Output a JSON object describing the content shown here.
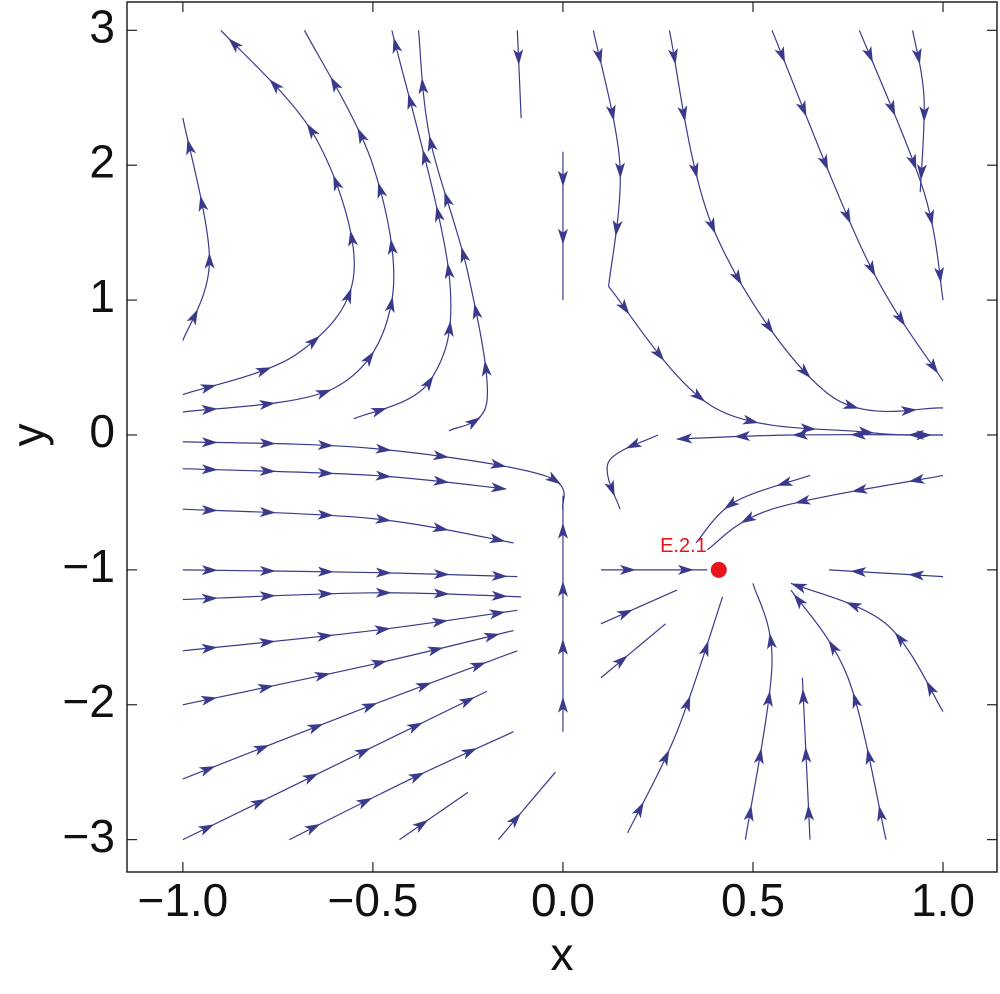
{
  "chart_data": {
    "type": "stream",
    "xlabel": "x",
    "ylabel": "y",
    "xlim": [
      -1.147,
      1.142
    ],
    "ylim": [
      -3.24,
      3.21
    ],
    "xticks": [
      {
        "value": -1,
        "label": "−1.0"
      },
      {
        "value": -0.5,
        "label": "−0.5"
      },
      {
        "value": 0,
        "label": "0.0"
      },
      0.5,
      {
        "value": 1,
        "label": "1.0"
      }
    ],
    "yticks": [
      {
        "value": -3,
        "label": "−3"
      },
      {
        "value": -2,
        "label": "−2"
      },
      {
        "value": -1,
        "label": "−1"
      },
      0,
      1,
      2,
      3
    ],
    "color": "#3a3a8c",
    "streamlines": [
      {
        "x": [
          -1,
          -0.5,
          -0.05,
          0
        ],
        "y": [
          -0.05,
          -0.1,
          -0.3,
          -0.55
        ]
      },
      {
        "x": [
          -1,
          -0.5,
          -0.15
        ],
        "y": [
          -0.25,
          -0.3,
          -0.4
        ]
      },
      {
        "x": [
          -1,
          -0.5,
          -0.13
        ],
        "y": [
          -0.55,
          -0.62,
          -0.8
        ]
      },
      {
        "x": [
          -1,
          -0.5,
          -0.12
        ],
        "y": [
          -1.0,
          -1.02,
          -1.05
        ]
      },
      {
        "x": [
          -1,
          -0.5,
          -0.11
        ],
        "y": [
          -1.22,
          -1.17,
          -1.2
        ]
      },
      {
        "x": [
          -1,
          -0.5,
          -0.12
        ],
        "y": [
          -1.6,
          -1.45,
          -1.3
        ]
      },
      {
        "x": [
          -1,
          -0.5,
          -0.13
        ],
        "y": [
          -2.0,
          -1.7,
          -1.45
        ]
      },
      {
        "x": [
          -1,
          -0.5,
          -0.12
        ],
        "y": [
          -2.55,
          -2.0,
          -1.6
        ]
      },
      {
        "x": [
          -1,
          -0.6,
          -0.2
        ],
        "y": [
          -3.0,
          -2.45,
          -1.9
        ]
      },
      {
        "x": [
          -0.72,
          -0.4,
          -0.13
        ],
        "y": [
          -3.0,
          -2.55,
          -2.2
        ]
      },
      {
        "x": [
          -0.43,
          -0.25
        ],
        "y": [
          -3.0,
          -2.65
        ]
      },
      {
        "x": [
          -0.17,
          -0.02
        ],
        "y": [
          -3.0,
          -2.5
        ]
      },
      {
        "x": [
          0,
          0,
          0
        ],
        "y": [
          -2.2,
          -1.2,
          -0.45
        ]
      },
      {
        "x": [
          -1,
          -0.7,
          -0.55,
          -0.65,
          -0.9
        ],
        "y": [
          0.3,
          0.6,
          1.2,
          2.2,
          3.0
        ]
      },
      {
        "x": [
          -1,
          -0.93,
          -1
        ],
        "y": [
          0.7,
          1.3,
          2.35
        ]
      },
      {
        "x": [
          -1,
          -0.6,
          -0.45,
          -0.5,
          -0.68
        ],
        "y": [
          0.17,
          0.35,
          1.0,
          2.0,
          3.0
        ]
      },
      {
        "x": [
          -0.55,
          -0.35,
          -0.3,
          -0.45
        ],
        "y": [
          0.12,
          0.4,
          1.2,
          3.0
        ]
      },
      {
        "x": [
          -0.3,
          -0.2,
          -0.25,
          -0.35,
          -0.38
        ],
        "y": [
          0.03,
          0.25,
          1.2,
          2.2,
          3.0
        ]
      },
      {
        "x": [
          -0.12,
          -0.11
        ],
        "y": [
          3.0,
          2.35
        ]
      },
      {
        "x": [
          0,
          0
        ],
        "y": [
          2.1,
          1.0
        ]
      },
      {
        "x": [
          0.08,
          0.15,
          0.12
        ],
        "y": [
          3.0,
          2.0,
          1.1
        ]
      },
      {
        "x": [
          0.28,
          0.4,
          0.7,
          1.0
        ],
        "y": [
          3.0,
          1.5,
          0.3,
          0.2
        ]
      },
      {
        "x": [
          0.12,
          0.4,
          0.8,
          1.0
        ],
        "y": [
          1.1,
          0.2,
          0.02,
          0.0
        ]
      },
      {
        "x": [
          0.55,
          0.8,
          1.0
        ],
        "y": [
          3.0,
          1.3,
          0.4
        ]
      },
      {
        "x": [
          0.78,
          0.95,
          1.0
        ],
        "y": [
          3.0,
          1.8,
          1.0
        ]
      },
      {
        "x": [
          0.92,
          0.95,
          0.94
        ],
        "y": [
          3.0,
          2.5,
          1.8
        ]
      },
      {
        "x": [
          1.0,
          0.6,
          0.3
        ],
        "y": [
          0.0,
          0.0,
          -0.03
        ]
      },
      {
        "x": [
          1.0,
          0.55,
          0.38
        ],
        "y": [
          -0.3,
          -0.55,
          -0.85
        ]
      },
      {
        "x": [
          0.65,
          0.45,
          0.35
        ],
        "y": [
          -0.3,
          -0.5,
          -0.8
        ]
      },
      {
        "x": [
          0.25,
          0.12,
          0.15
        ],
        "y": [
          0.0,
          -0.2,
          -0.55
        ]
      },
      {
        "x": [
          1.0,
          0.7
        ],
        "y": [
          -1.05,
          -1.0
        ]
      },
      {
        "x": [
          1.0,
          0.85,
          0.6
        ],
        "y": [
          -2.05,
          -1.4,
          -1.1
        ]
      },
      {
        "x": [
          0.85,
          0.75,
          0.6
        ],
        "y": [
          -3.0,
          -1.8,
          -1.15
        ]
      },
      {
        "x": [
          0.65,
          0.63
        ],
        "y": [
          -3.0,
          -1.8
        ]
      },
      {
        "x": [
          0.48,
          0.55,
          0.5
        ],
        "y": [
          -3.0,
          -1.7,
          -1.1
        ]
      },
      {
        "x": [
          0.17,
          0.3,
          0.42
        ],
        "y": [
          -2.95,
          -2.2,
          -1.2
        ]
      },
      {
        "x": [
          0.1,
          0.3
        ],
        "y": [
          -1.4,
          -1.15
        ]
      },
      {
        "x": [
          0.1,
          0.38
        ],
        "y": [
          -1.0,
          -1.0
        ]
      },
      {
        "x": [
          0.1,
          0.27
        ],
        "y": [
          -1.8,
          -1.4
        ]
      }
    ],
    "points": [
      {
        "x": 0.41,
        "y": -1,
        "label": "E.2.1",
        "color": "#e8141c"
      }
    ]
  }
}
